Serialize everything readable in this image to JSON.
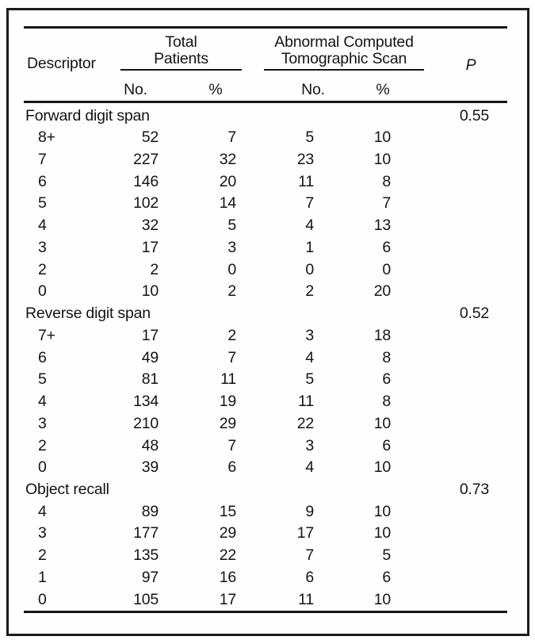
{
  "colors": {
    "text": "#141414",
    "rules": "#161616",
    "frame_border": "#1c1c1c",
    "background": "#ffffff"
  },
  "table": {
    "header": {
      "descriptor": "Descriptor",
      "groups": [
        {
          "lines": [
            "Total",
            "Patients"
          ],
          "sub": [
            "No.",
            "%"
          ]
        },
        {
          "lines": [
            "Abnormal Computed",
            "Tomographic Scan"
          ],
          "sub": [
            "No.",
            "%"
          ]
        }
      ],
      "p_label": "P"
    },
    "sections": [
      {
        "label": "Forward digit span",
        "p": "0.55",
        "rows": [
          [
            "8+",
            "52",
            "7",
            "5",
            "10"
          ],
          [
            "7",
            "227",
            "32",
            "23",
            "10"
          ],
          [
            "6",
            "146",
            "20",
            "11",
            "8"
          ],
          [
            "5",
            "102",
            "14",
            "7",
            "7"
          ],
          [
            "4",
            "32",
            "5",
            "4",
            "13"
          ],
          [
            "3",
            "17",
            "3",
            "1",
            "6"
          ],
          [
            "2",
            "2",
            "0",
            "0",
            "0"
          ],
          [
            "0",
            "10",
            "2",
            "2",
            "20"
          ]
        ]
      },
      {
        "label": "Reverse digit span",
        "p": "0.52",
        "rows": [
          [
            "7+",
            "17",
            "2",
            "3",
            "18"
          ],
          [
            "6",
            "49",
            "7",
            "4",
            "8"
          ],
          [
            "5",
            "81",
            "11",
            "5",
            "6"
          ],
          [
            "4",
            "134",
            "19",
            "11",
            "8"
          ],
          [
            "3",
            "210",
            "29",
            "22",
            "10"
          ],
          [
            "2",
            "48",
            "7",
            "3",
            "6"
          ],
          [
            "0",
            "39",
            "6",
            "4",
            "10"
          ]
        ]
      },
      {
        "label": "Object recall",
        "p": "0.73",
        "rows": [
          [
            "4",
            "89",
            "15",
            "9",
            "10"
          ],
          [
            "3",
            "177",
            "29",
            "17",
            "10"
          ],
          [
            "2",
            "135",
            "22",
            "7",
            "5"
          ],
          [
            "1",
            "97",
            "16",
            "6",
            "6"
          ],
          [
            "0",
            "105",
            "17",
            "11",
            "10"
          ]
        ]
      }
    ]
  }
}
